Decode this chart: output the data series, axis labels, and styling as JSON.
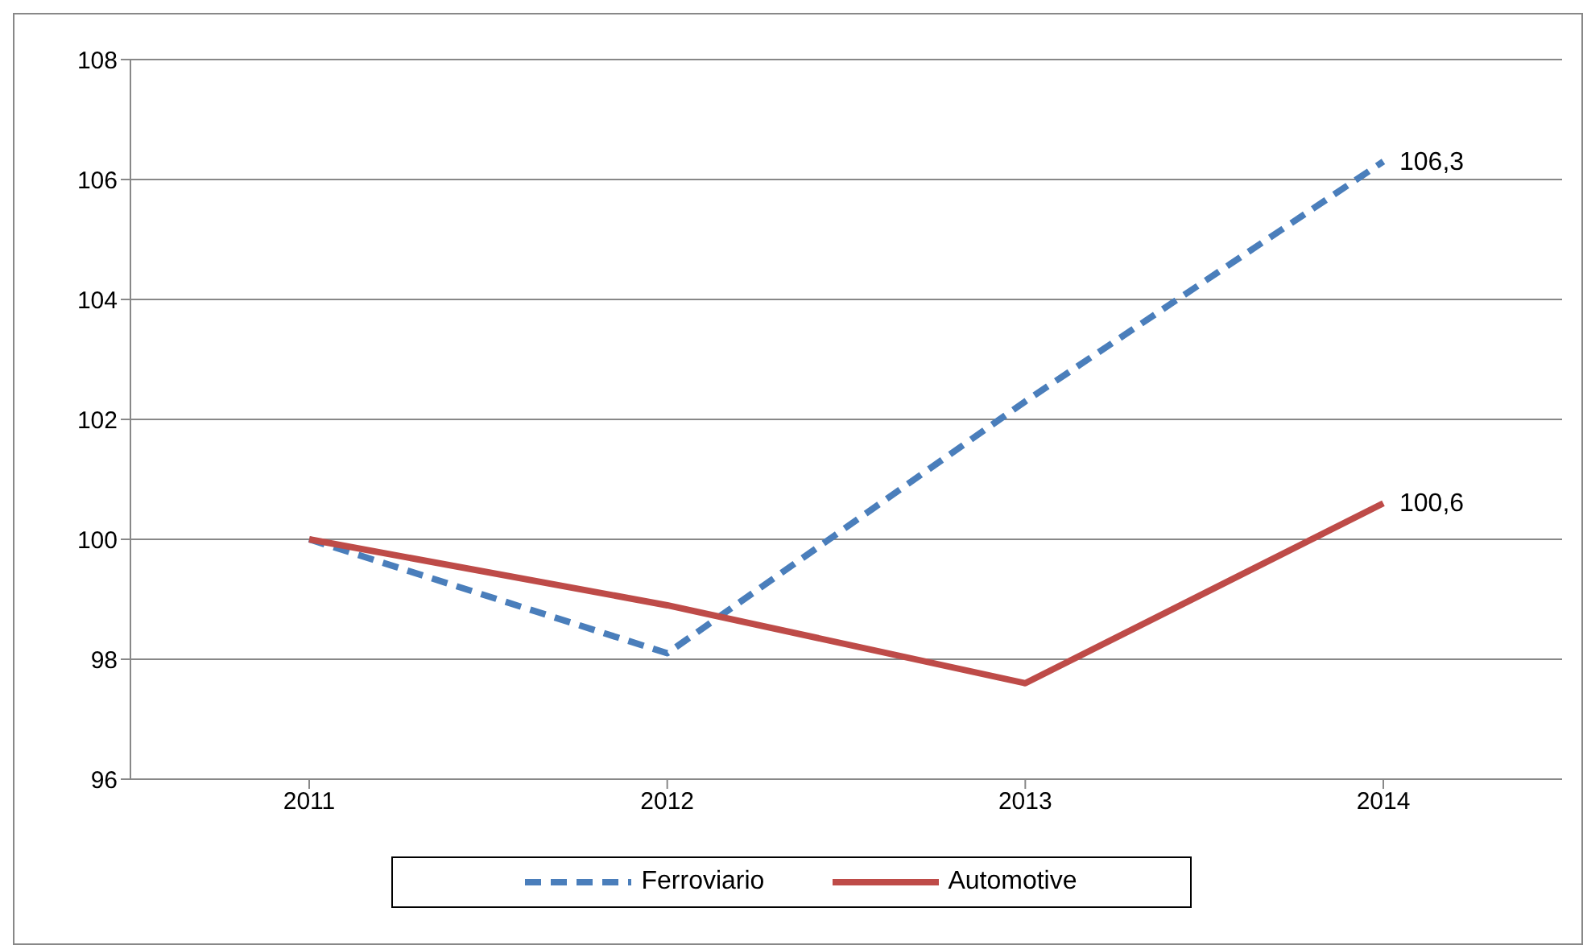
{
  "chart_data": {
    "type": "line",
    "categories": [
      "2011",
      "2012",
      "2013",
      "2014"
    ],
    "series": [
      {
        "name": "Ferroviario",
        "color": "#4a7ebb",
        "line_style": "dashed",
        "values": [
          100,
          98.1,
          102.3,
          106.3
        ],
        "value_labels": [
          null,
          null,
          null,
          "106,3"
        ]
      },
      {
        "name": "Automotive",
        "color": "#be4b48",
        "line_style": "solid",
        "values": [
          100,
          98.9,
          97.6,
          100.6
        ],
        "value_labels": [
          null,
          null,
          null,
          "100,6"
        ]
      }
    ],
    "ylim": [
      96,
      108
    ],
    "yticks": [
      96,
      98,
      100,
      102,
      104,
      106,
      108
    ],
    "grid": "y",
    "legend": "bottom",
    "marker": "none"
  }
}
